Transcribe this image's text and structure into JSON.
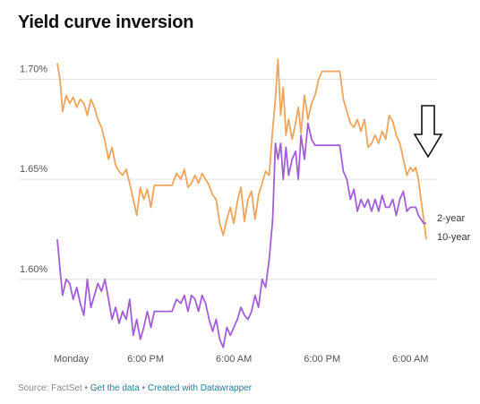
{
  "title": "Yield curve inversion",
  "footer": {
    "source": "Source: FactSet",
    "separator": " • ",
    "get_data": "Get the data",
    "created_with": "Created with Datawrapper"
  },
  "chart_data": {
    "type": "line",
    "title": "Yield curve inversion",
    "xlabel": "",
    "ylabel": "",
    "x_ticks": [
      "Monday",
      "6:00 PM",
      "6:00 AM",
      "6:00 PM",
      "6:00 AM"
    ],
    "y_ticks": [
      "1.70%",
      "1.65%",
      "1.60%"
    ],
    "y_tick_values": [
      1.7,
      1.65,
      1.6
    ],
    "ylim": [
      1.565,
      1.715
    ],
    "x_range": [
      0,
      4.2
    ],
    "grid": true,
    "legend": "direct labels at line ends",
    "annotation": "down arrow near the right end",
    "colors": {
      "2-year": "#a35ed7",
      "10-year": "#f0a45a"
    },
    "series": [
      {
        "name": "10-year",
        "color": "#f0a45a",
        "points": [
          [
            0.0,
            1.708
          ],
          [
            0.03,
            1.7
          ],
          [
            0.06,
            1.684
          ],
          [
            0.1,
            1.692
          ],
          [
            0.14,
            1.688
          ],
          [
            0.18,
            1.691
          ],
          [
            0.22,
            1.686
          ],
          [
            0.26,
            1.69
          ],
          [
            0.3,
            1.688
          ],
          [
            0.34,
            1.682
          ],
          [
            0.38,
            1.69
          ],
          [
            0.42,
            1.686
          ],
          [
            0.46,
            1.68
          ],
          [
            0.5,
            1.676
          ],
          [
            0.54,
            1.669
          ],
          [
            0.58,
            1.66
          ],
          [
            0.62,
            1.666
          ],
          [
            0.66,
            1.657
          ],
          [
            0.7,
            1.654
          ],
          [
            0.74,
            1.652
          ],
          [
            0.78,
            1.655
          ],
          [
            0.82,
            1.648
          ],
          [
            0.86,
            1.64
          ],
          [
            0.9,
            1.632
          ],
          [
            0.94,
            1.646
          ],
          [
            0.98,
            1.64
          ],
          [
            1.02,
            1.645
          ],
          [
            1.06,
            1.636
          ],
          [
            1.1,
            1.647
          ],
          [
            1.15,
            1.647
          ],
          [
            1.2,
            1.647
          ],
          [
            1.25,
            1.647
          ],
          [
            1.3,
            1.647
          ],
          [
            1.35,
            1.653
          ],
          [
            1.4,
            1.65
          ],
          [
            1.44,
            1.655
          ],
          [
            1.48,
            1.646
          ],
          [
            1.52,
            1.648
          ],
          [
            1.56,
            1.652
          ],
          [
            1.6,
            1.648
          ],
          [
            1.64,
            1.653
          ],
          [
            1.68,
            1.65
          ],
          [
            1.72,
            1.647
          ],
          [
            1.76,
            1.642
          ],
          [
            1.8,
            1.64
          ],
          [
            1.84,
            1.628
          ],
          [
            1.88,
            1.622
          ],
          [
            1.92,
            1.63
          ],
          [
            1.96,
            1.636
          ],
          [
            2.0,
            1.628
          ],
          [
            2.04,
            1.639
          ],
          [
            2.08,
            1.646
          ],
          [
            2.12,
            1.629
          ],
          [
            2.16,
            1.64
          ],
          [
            2.2,
            1.644
          ],
          [
            2.24,
            1.63
          ],
          [
            2.28,
            1.642
          ],
          [
            2.32,
            1.648
          ],
          [
            2.36,
            1.654
          ],
          [
            2.4,
            1.652
          ],
          [
            2.44,
            1.675
          ],
          [
            2.47,
            1.69
          ],
          [
            2.5,
            1.71
          ],
          [
            2.53,
            1.682
          ],
          [
            2.56,
            1.696
          ],
          [
            2.59,
            1.672
          ],
          [
            2.62,
            1.68
          ],
          [
            2.66,
            1.67
          ],
          [
            2.7,
            1.678
          ],
          [
            2.73,
            1.686
          ],
          [
            2.76,
            1.673
          ],
          [
            2.8,
            1.692
          ],
          [
            2.84,
            1.68
          ],
          [
            2.88,
            1.688
          ],
          [
            2.92,
            1.692
          ],
          [
            2.96,
            1.7
          ],
          [
            3.0,
            1.704
          ],
          [
            3.1,
            1.704
          ],
          [
            3.2,
            1.704
          ],
          [
            3.24,
            1.69
          ],
          [
            3.28,
            1.684
          ],
          [
            3.32,
            1.678
          ],
          [
            3.36,
            1.676
          ],
          [
            3.4,
            1.68
          ],
          [
            3.44,
            1.674
          ],
          [
            3.48,
            1.68
          ],
          [
            3.52,
            1.666
          ],
          [
            3.56,
            1.668
          ],
          [
            3.6,
            1.672
          ],
          [
            3.64,
            1.668
          ],
          [
            3.68,
            1.674
          ],
          [
            3.72,
            1.67
          ],
          [
            3.76,
            1.682
          ],
          [
            3.8,
            1.679
          ],
          [
            3.84,
            1.672
          ],
          [
            3.88,
            1.668
          ],
          [
            3.92,
            1.66
          ],
          [
            3.96,
            1.652
          ],
          [
            4.0,
            1.656
          ],
          [
            4.03,
            1.654
          ],
          [
            4.06,
            1.656
          ],
          [
            4.09,
            1.65
          ],
          [
            4.12,
            1.64
          ],
          [
            4.15,
            1.63
          ],
          [
            4.18,
            1.62
          ]
        ]
      },
      {
        "name": "2-year",
        "color": "#a35ed7",
        "points": [
          [
            0.0,
            1.62
          ],
          [
            0.03,
            1.605
          ],
          [
            0.06,
            1.592
          ],
          [
            0.1,
            1.6
          ],
          [
            0.14,
            1.598
          ],
          [
            0.18,
            1.59
          ],
          [
            0.22,
            1.596
          ],
          [
            0.26,
            1.588
          ],
          [
            0.3,
            1.582
          ],
          [
            0.34,
            1.6
          ],
          [
            0.38,
            1.586
          ],
          [
            0.42,
            1.592
          ],
          [
            0.46,
            1.598
          ],
          [
            0.5,
            1.594
          ],
          [
            0.54,
            1.6
          ],
          [
            0.58,
            1.59
          ],
          [
            0.62,
            1.58
          ],
          [
            0.66,
            1.586
          ],
          [
            0.7,
            1.578
          ],
          [
            0.74,
            1.584
          ],
          [
            0.78,
            1.58
          ],
          [
            0.82,
            1.59
          ],
          [
            0.86,
            1.572
          ],
          [
            0.9,
            1.58
          ],
          [
            0.94,
            1.57
          ],
          [
            0.98,
            1.576
          ],
          [
            1.02,
            1.584
          ],
          [
            1.06,
            1.576
          ],
          [
            1.1,
            1.584
          ],
          [
            1.15,
            1.584
          ],
          [
            1.2,
            1.584
          ],
          [
            1.25,
            1.584
          ],
          [
            1.3,
            1.584
          ],
          [
            1.35,
            1.59
          ],
          [
            1.4,
            1.588
          ],
          [
            1.44,
            1.592
          ],
          [
            1.48,
            1.584
          ],
          [
            1.52,
            1.592
          ],
          [
            1.56,
            1.59
          ],
          [
            1.6,
            1.584
          ],
          [
            1.64,
            1.592
          ],
          [
            1.68,
            1.588
          ],
          [
            1.72,
            1.58
          ],
          [
            1.76,
            1.574
          ],
          [
            1.8,
            1.58
          ],
          [
            1.84,
            1.57
          ],
          [
            1.88,
            1.566
          ],
          [
            1.92,
            1.576
          ],
          [
            1.96,
            1.572
          ],
          [
            2.0,
            1.576
          ],
          [
            2.04,
            1.58
          ],
          [
            2.08,
            1.586
          ],
          [
            2.12,
            1.582
          ],
          [
            2.16,
            1.58
          ],
          [
            2.2,
            1.584
          ],
          [
            2.24,
            1.592
          ],
          [
            2.28,
            1.586
          ],
          [
            2.32,
            1.6
          ],
          [
            2.36,
            1.596
          ],
          [
            2.4,
            1.61
          ],
          [
            2.44,
            1.63
          ],
          [
            2.47,
            1.668
          ],
          [
            2.5,
            1.66
          ],
          [
            2.53,
            1.668
          ],
          [
            2.56,
            1.65
          ],
          [
            2.59,
            1.666
          ],
          [
            2.62,
            1.652
          ],
          [
            2.66,
            1.66
          ],
          [
            2.7,
            1.664
          ],
          [
            2.73,
            1.65
          ],
          [
            2.76,
            1.672
          ],
          [
            2.8,
            1.66
          ],
          [
            2.84,
            1.678
          ],
          [
            2.88,
            1.67
          ],
          [
            2.92,
            1.667
          ],
          [
            2.96,
            1.667
          ],
          [
            3.0,
            1.667
          ],
          [
            3.1,
            1.667
          ],
          [
            3.2,
            1.667
          ],
          [
            3.24,
            1.654
          ],
          [
            3.28,
            1.65
          ],
          [
            3.32,
            1.64
          ],
          [
            3.36,
            1.645
          ],
          [
            3.4,
            1.634
          ],
          [
            3.44,
            1.64
          ],
          [
            3.48,
            1.636
          ],
          [
            3.52,
            1.64
          ],
          [
            3.56,
            1.634
          ],
          [
            3.6,
            1.64
          ],
          [
            3.64,
            1.634
          ],
          [
            3.68,
            1.642
          ],
          [
            3.72,
            1.636
          ],
          [
            3.76,
            1.636
          ],
          [
            3.8,
            1.64
          ],
          [
            3.84,
            1.632
          ],
          [
            3.88,
            1.64
          ],
          [
            3.92,
            1.644
          ],
          [
            3.96,
            1.634
          ],
          [
            4.0,
            1.636
          ],
          [
            4.03,
            1.636
          ],
          [
            4.06,
            1.636
          ],
          [
            4.09,
            1.632
          ],
          [
            4.12,
            1.63
          ],
          [
            4.15,
            1.628
          ],
          [
            4.18,
            1.628
          ]
        ]
      }
    ]
  }
}
